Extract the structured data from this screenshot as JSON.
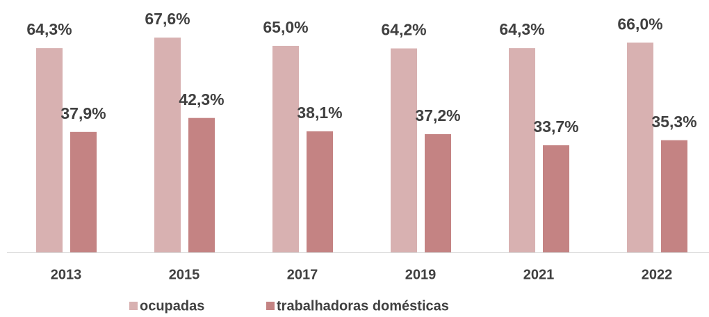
{
  "chart_data": {
    "type": "bar",
    "categories": [
      "2013",
      "2015",
      "2017",
      "2019",
      "2021",
      "2022"
    ],
    "series": [
      {
        "name": "ocupadas",
        "color": "#d8b1b1",
        "values": [
          64.3,
          67.6,
          65.0,
          64.2,
          64.3,
          66.0
        ],
        "value_labels": [
          "64,3%",
          "67,6%",
          "65,0%",
          "64,2%",
          "64,3%",
          "66,0%"
        ]
      },
      {
        "name": "trabalhadoras domésticas",
        "color": "#c48383",
        "values": [
          37.9,
          42.3,
          38.1,
          37.2,
          33.7,
          35.3
        ],
        "value_labels": [
          "37,9%",
          "42,3%",
          "38,1%",
          "37,2%",
          "33,7%",
          "35,3%"
        ]
      }
    ],
    "ylim": [
      0,
      80
    ],
    "legend": "bottom"
  }
}
